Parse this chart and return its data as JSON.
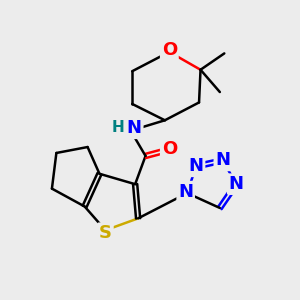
{
  "bg_color": "#ececec",
  "atom_colors": {
    "C": "#000000",
    "N": "#0000ff",
    "O": "#ff0000",
    "S": "#ccaa00",
    "H": "#008080"
  },
  "bond_lw": 1.8,
  "font_size": 13
}
